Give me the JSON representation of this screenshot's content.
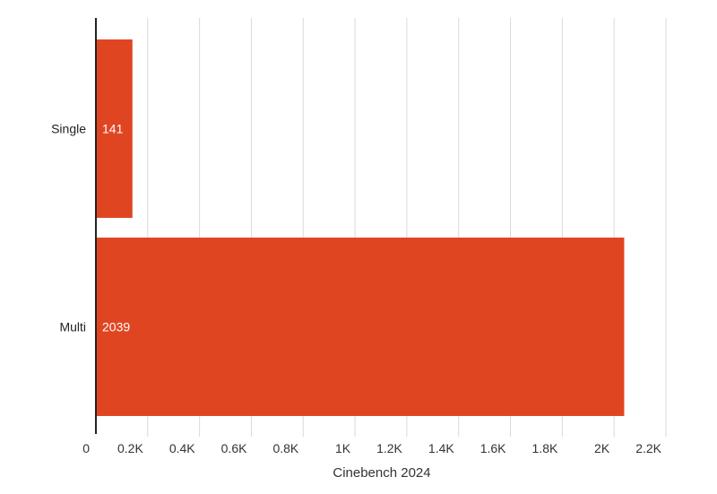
{
  "chart_data": {
    "type": "bar",
    "orientation": "horizontal",
    "categories": [
      "Single",
      "Multi"
    ],
    "values": [
      141,
      2039
    ],
    "data_labels": [
      "141",
      "2039"
    ],
    "xlabel": "Cinebench 2024",
    "ylabel": "",
    "xlim": [
      0,
      2200
    ],
    "x_ticks": [
      0,
      200,
      400,
      600,
      800,
      1000,
      1200,
      1400,
      1600,
      1800,
      2000,
      2200
    ],
    "x_tick_labels": [
      "0",
      "0.2K",
      "0.4K",
      "0.6K",
      "0.8K",
      "1K",
      "1.2K",
      "1.4K",
      "1.6K",
      "1.8K",
      "2K",
      "2.2K"
    ],
    "grid": true,
    "legend": "none",
    "bar_color": "#e04522",
    "grid_color": "#d9d9d9",
    "axis_color": "#222222"
  }
}
